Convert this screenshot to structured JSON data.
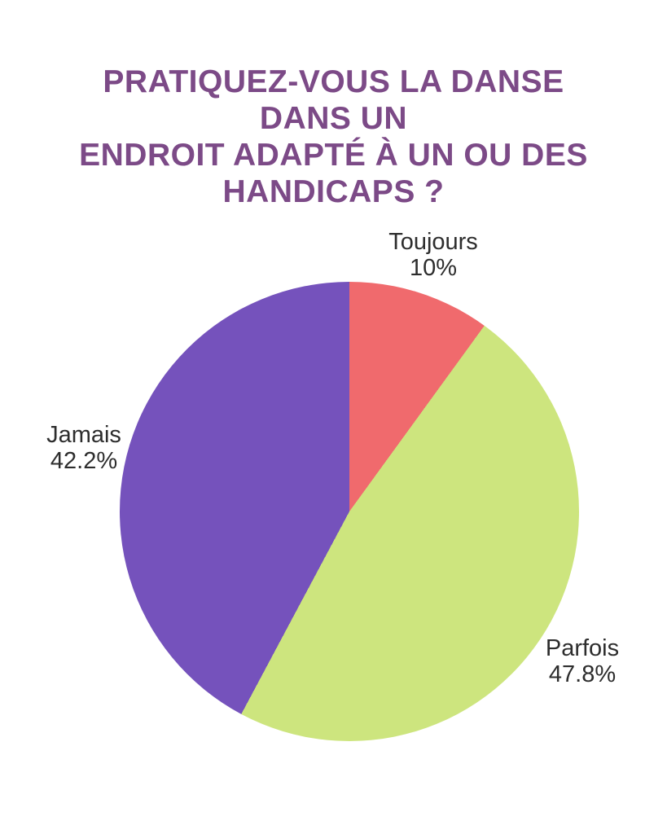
{
  "page": {
    "background": "#ffffff"
  },
  "title": {
    "text": "PRATIQUEZ-VOUS LA DANSE DANS UN ENDROIT ADAPTÉ À UN OU DES HANDICAPS ?",
    "lines": [
      "PRATIQUEZ-VOUS LA DANSE DANS UN",
      "ENDROIT ADAPTÉ À UN OU DES",
      "HANDICAPS ?"
    ],
    "color": "#7C4A87"
  },
  "chart_data": {
    "type": "pie",
    "title": "PRATIQUEZ-VOUS LA DANSE DANS UN ENDROIT ADAPTÉ À UN OU DES HANDICAPS ?",
    "start_angle_deg": 0,
    "direction": "clockwise",
    "legend_position": "labels-outside",
    "label_color": "#2d2d2d",
    "slices": [
      {
        "label": "Toujours",
        "value": 10,
        "display": "10%",
        "color": "#F06A6D"
      },
      {
        "label": "Parfois",
        "value": 47.8,
        "display": "47.8%",
        "color": "#CDE57E"
      },
      {
        "label": "Jamais",
        "value": 42.2,
        "display": "42.2%",
        "color": "#7552BC"
      }
    ]
  }
}
